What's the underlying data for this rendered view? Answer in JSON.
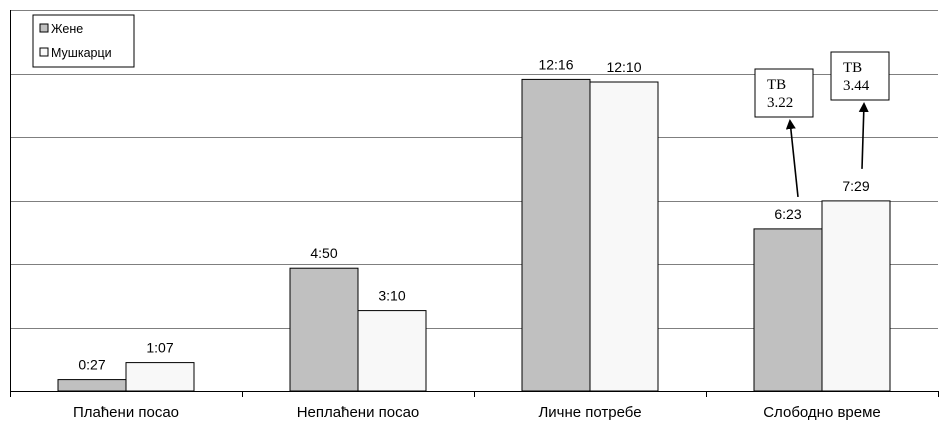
{
  "chart_data": {
    "type": "bar",
    "categories": [
      "Плаћени посао",
      "Неплаћени посао",
      "Личне потребе",
      "Слободно време"
    ],
    "series": [
      {
        "name": "Жене",
        "values": [
          0.45,
          4.833,
          12.267,
          6.383
        ],
        "labels": [
          "0:27",
          "4:50",
          "12:16",
          "6:23"
        ],
        "color": "#c0c0c0"
      },
      {
        "name": "Мушкарци",
        "values": [
          1.117,
          3.167,
          12.167,
          7.483
        ],
        "labels": [
          "1:07",
          "3:10",
          "12:10",
          "7:29"
        ],
        "color": "#f8f8f8"
      }
    ],
    "ylim": [
      0,
      15
    ],
    "grid": true,
    "legend": "top-left",
    "annotations": [
      {
        "series": 0,
        "category": 3,
        "title": "ТВ",
        "value": "3.22"
      },
      {
        "series": 1,
        "category": 3,
        "title": "ТВ",
        "value": "3.44"
      }
    ]
  }
}
